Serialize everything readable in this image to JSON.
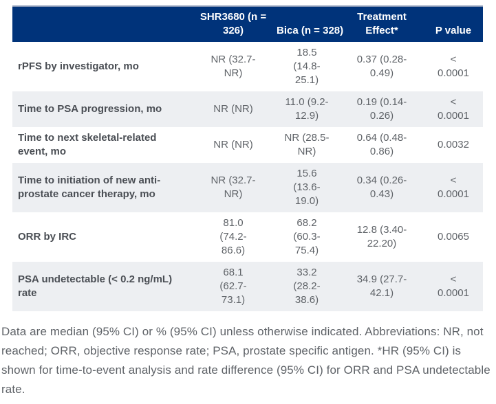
{
  "table": {
    "columns": {
      "label": "",
      "shr": "SHR3680 (n =\n326)",
      "bica": "Bica (n = 328)",
      "effect": "Treatment\nEffect*",
      "pvalue": "P value"
    },
    "rows": [
      {
        "label": "rPFS by investigator, mo",
        "shr": "NR (32.7-\nNR)",
        "bica": "18.5\n(14.8-\n25.1)",
        "effect": "0.37 (0.28-\n0.49)",
        "pvalue": "<\n0.0001"
      },
      {
        "label": "Time to PSA progression, mo",
        "shr": "NR (NR)",
        "bica": "11.0 (9.2-\n12.9)",
        "effect": "0.19 (0.14-\n0.26)",
        "pvalue": "<\n0.0001"
      },
      {
        "label": "Time to next skeletal-related\nevent, mo",
        "shr": "NR (NR)",
        "bica": "NR (28.5-\nNR)",
        "effect": "0.64 (0.48-\n0.86)",
        "pvalue": "0.0032"
      },
      {
        "label": "Time to initiation of new anti-\nprostate cancer therapy, mo",
        "shr": "NR (32.7-\nNR)",
        "bica": "15.6\n(13.6-\n19.0)",
        "effect": "0.34 (0.26-\n0.43)",
        "pvalue": "<\n0.0001"
      },
      {
        "label": "ORR by IRC",
        "shr": "81.0\n(74.2-\n86.6)",
        "bica": "68.2\n(60.3-\n75.4)",
        "effect": "12.8 (3.40-\n22.20)",
        "pvalue": "0.0065"
      },
      {
        "label": "PSA undetectable (< 0.2 ng/mL)\nrate",
        "shr": "68.1\n(62.7-\n73.1)",
        "bica": "33.2\n(28.2-\n38.6)",
        "effect": "34.9 (27.7-\n42.1)",
        "pvalue": "<\n0.0001"
      }
    ]
  },
  "footnote": "Data are median (95% CI) or % (95% CI) unless otherwise indicated. Abbreviations: NR, not reached; ORR, objective response rate; PSA, prostate specific antigen. *HR (95% CI) is shown for time-to-event analysis and rate difference (95% CI) for ORR and PSA undetectable rate.",
  "colors": {
    "header_bg": "#00337a",
    "header_top_border": "#8092b2",
    "header_text": "#ffffff",
    "row_alt_bg": "#edeff2",
    "label_text": "#4a4e54",
    "body_text": "#5f6368"
  }
}
